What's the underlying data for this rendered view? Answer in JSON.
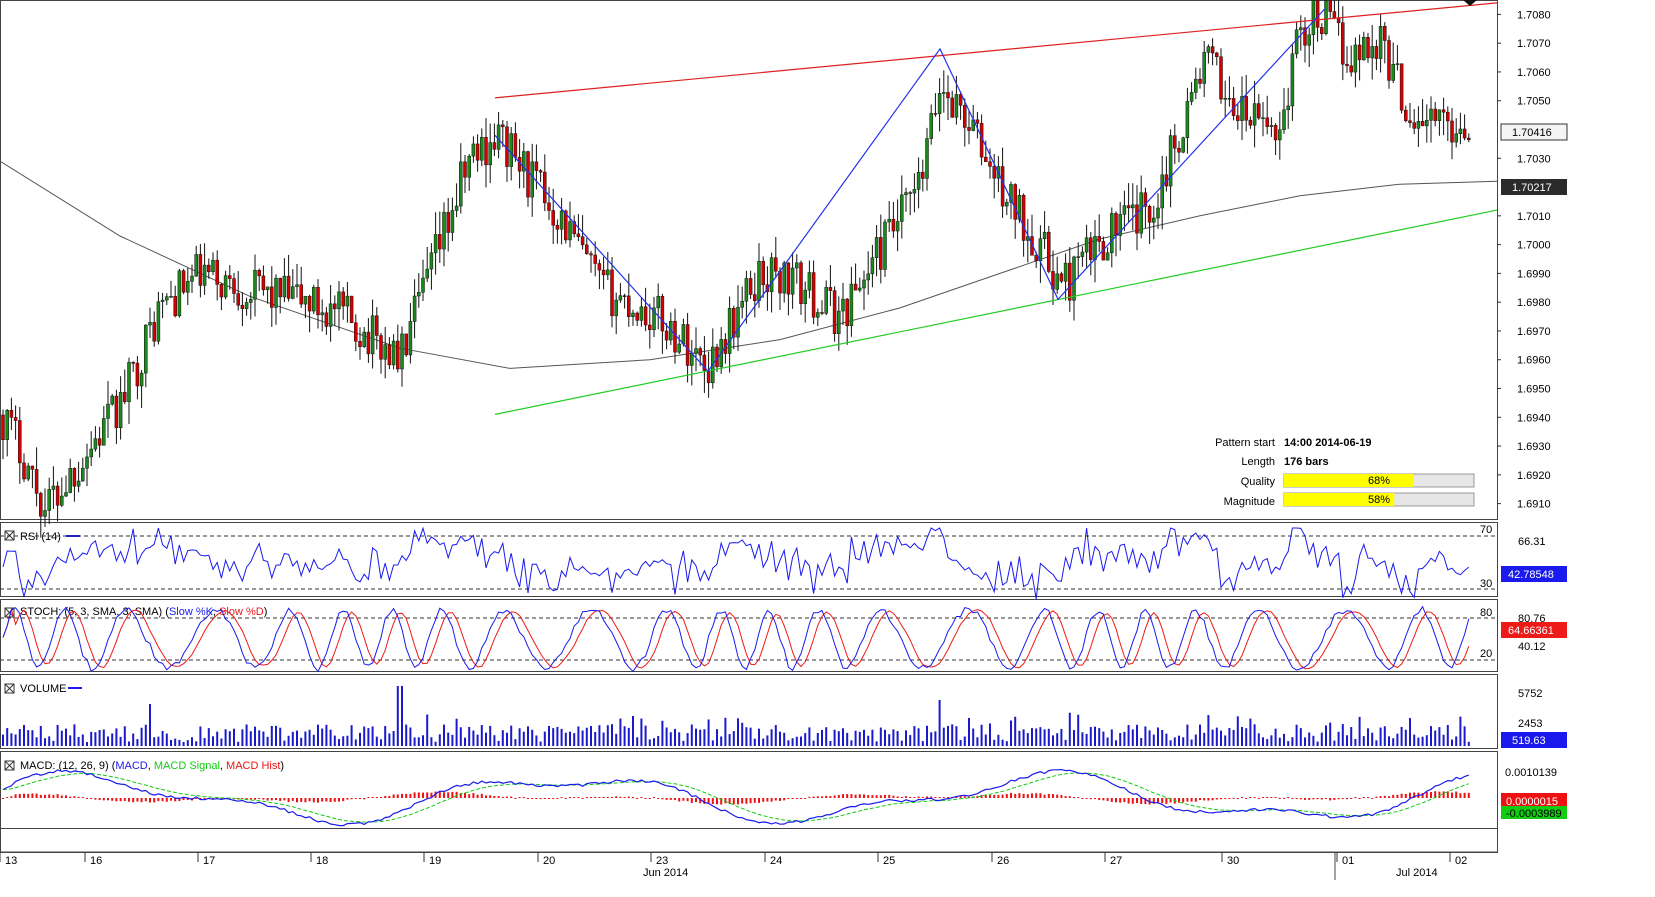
{
  "chart_data": {
    "type": "candlestick",
    "price_axis": {
      "ticks": [
        "1.7080",
        "1.7070",
        "1.7060",
        "1.7050",
        "1.7030",
        "1.7010",
        "1.7000",
        "1.6990",
        "1.6980",
        "1.6970",
        "1.6960",
        "1.6950",
        "1.6940",
        "1.6930",
        "1.6920",
        "1.6910"
      ],
      "ylim": [
        1.6905,
        1.7085
      ],
      "current_price": "1.70416",
      "ma_value": "1.70217"
    },
    "pattern": {
      "resistance_line": {
        "x": [
          "2014-06-19",
          "2014-07-02"
        ],
        "y": [
          1.7051,
          1.7084
        ]
      },
      "support_line": {
        "x": [
          "2014-06-19",
          "2014-07-02"
        ],
        "y": [
          1.6941,
          1.7012
        ]
      },
      "zigzag": [
        {
          "x": "2014-06-19",
          "y": 1.7038
        },
        {
          "x": "2014-06-23",
          "y": 1.6956
        },
        {
          "x": "2014-06-25",
          "y": 1.7068
        },
        {
          "x": "2014-06-26",
          "y": 1.6981
        },
        {
          "x": "2014-06-30",
          "y": 1.7082
        }
      ]
    },
    "info": {
      "pattern_start_label": "Pattern start",
      "pattern_start_value": "14:00 2014-06-19",
      "length_label": "Length",
      "length_value": "176 bars",
      "quality_label": "Quality",
      "quality_value": 68,
      "quality_text": "68%",
      "magnitude_label": "Magnitude",
      "magnitude_value": 58,
      "magnitude_text": "58%"
    },
    "date_ticks": [
      "13",
      "16",
      "17",
      "18",
      "19",
      "20",
      "23",
      "24",
      "25",
      "26",
      "27",
      "30",
      "01",
      "02"
    ],
    "month_labels": [
      "Jun 2014",
      "Jul 2014"
    ],
    "rsi": {
      "label": "RSI (14)",
      "levels": [
        "70",
        "30"
      ],
      "value_label": "66.31",
      "current": "42.78548"
    },
    "stoch": {
      "label_prefix": "STOCH: (5, 3, SMA, 3, SMA) (",
      "k_label": "Slow %K",
      "sep": ", ",
      "d_label": "Slow %D",
      "label_suffix": ")",
      "levels": [
        "80",
        "20"
      ],
      "ticks": [
        "80.76",
        "40.12"
      ],
      "current": "64.66361"
    },
    "volume": {
      "label": "VOLUME",
      "ticks": [
        "5752",
        "2453"
      ],
      "current": "519.63"
    },
    "macd": {
      "label_prefix": "MACD: (12, 26, 9) (",
      "macd_label": "MACD",
      "sep": ", ",
      "signal_label": "MACD Signal",
      "hist_label": "MACD Hist",
      "label_suffix": ")",
      "tick": "0.0010139",
      "current_hist": "0.0000015",
      "current_macd": "-0.0003989"
    },
    "colors": {
      "candle_up": "#1a8a1a",
      "candle_down": "#d40000",
      "resistance": "#e02020",
      "support": "#22cc22",
      "zigzag": "#2233ee",
      "ma": "#555555",
      "rsi": "#1a1aee",
      "stoch_k": "#1a1aee",
      "stoch_d": "#ee1a1a",
      "volume": "#1a1acc",
      "macd_line": "#1a1aee",
      "macd_signal": "#11cc11",
      "macd_hist": "#ee1111",
      "bar_fill": "#ffff00"
    }
  }
}
